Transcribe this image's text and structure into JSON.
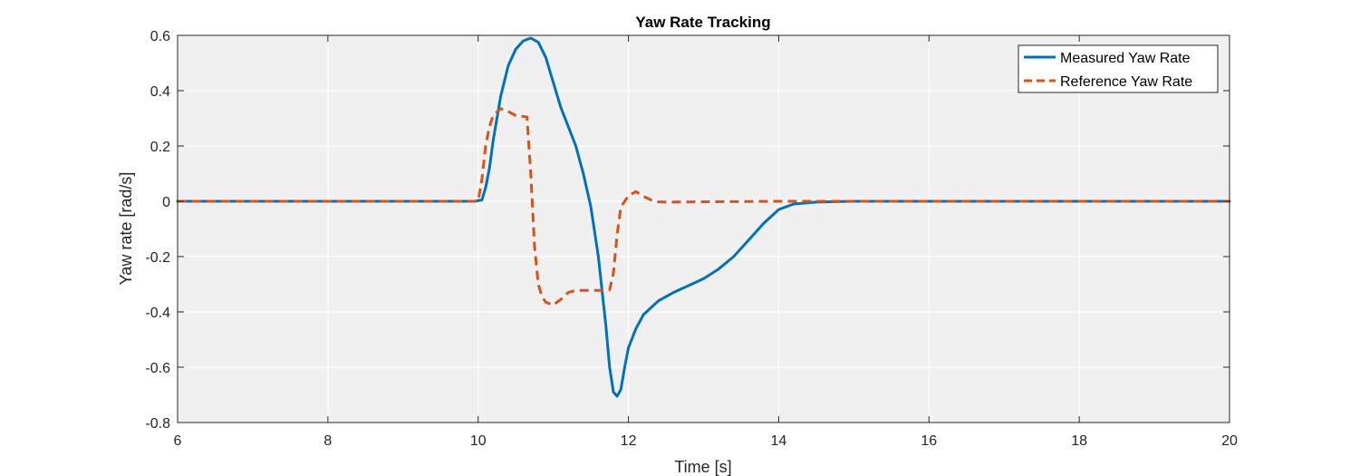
{
  "chart_data": {
    "type": "line",
    "title": "Yaw Rate Tracking",
    "xlabel": "Time [s]",
    "ylabel": "Yaw rate [rad/s]",
    "xlim": [
      6,
      20
    ],
    "ylim": [
      -0.8,
      0.6
    ],
    "xticks": [
      6,
      8,
      10,
      12,
      14,
      16,
      18,
      20
    ],
    "xtick_labels": [
      "6",
      "8",
      "10",
      "12",
      "14",
      "16",
      "18",
      "20"
    ],
    "yticks": [
      -0.8,
      -0.6,
      -0.4,
      -0.2,
      0,
      0.2,
      0.4,
      0.6
    ],
    "ytick_labels": [
      "-0.8",
      "-0.6",
      "-0.4",
      "-0.2",
      "0",
      "0.2",
      "0.4",
      "0.6"
    ],
    "grid": true,
    "legend_position": "top-right",
    "background_color": "#f0f0f0",
    "series": [
      {
        "name": "Measured Yaw Rate",
        "color": "#0072BD",
        "style": "solid",
        "x": [
          6,
          9.95,
          10.05,
          10.1,
          10.15,
          10.2,
          10.3,
          10.4,
          10.5,
          10.6,
          10.7,
          10.8,
          10.9,
          11.0,
          11.1,
          11.2,
          11.3,
          11.4,
          11.5,
          11.6,
          11.7,
          11.75,
          11.8,
          11.85,
          11.9,
          11.95,
          12.0,
          12.1,
          12.2,
          12.4,
          12.6,
          12.8,
          13.0,
          13.2,
          13.4,
          13.6,
          13.8,
          14.0,
          14.2,
          14.5,
          15.0,
          20
        ],
        "y": [
          0,
          0,
          0.005,
          0.05,
          0.12,
          0.22,
          0.38,
          0.49,
          0.55,
          0.58,
          0.59,
          0.575,
          0.52,
          0.43,
          0.34,
          0.27,
          0.2,
          0.1,
          -0.02,
          -0.2,
          -0.45,
          -0.6,
          -0.69,
          -0.705,
          -0.68,
          -0.6,
          -0.53,
          -0.46,
          -0.41,
          -0.36,
          -0.33,
          -0.305,
          -0.28,
          -0.245,
          -0.2,
          -0.14,
          -0.08,
          -0.03,
          -0.01,
          -0.003,
          0,
          0
        ]
      },
      {
        "name": "Reference Yaw Rate",
        "color": "#D95319",
        "style": "dashed",
        "x": [
          6,
          10.0,
          10.05,
          10.1,
          10.15,
          10.2,
          10.3,
          10.4,
          10.5,
          10.65,
          10.7,
          10.75,
          10.8,
          10.85,
          10.9,
          11.0,
          11.1,
          11.2,
          11.3,
          11.5,
          11.7,
          11.75,
          11.8,
          11.85,
          11.9,
          12.0,
          12.1,
          12.2,
          12.3,
          12.4,
          12.5,
          13.0,
          14.0,
          20
        ],
        "y": [
          0,
          0,
          0.08,
          0.2,
          0.27,
          0.31,
          0.335,
          0.325,
          0.31,
          0.305,
          0.1,
          -0.16,
          -0.3,
          -0.345,
          -0.365,
          -0.375,
          -0.355,
          -0.33,
          -0.322,
          -0.322,
          -0.322,
          -0.32,
          -0.26,
          -0.12,
          -0.02,
          0.02,
          0.035,
          0.018,
          0.005,
          -0.002,
          -0.003,
          -0.002,
          0,
          0
        ]
      }
    ]
  }
}
